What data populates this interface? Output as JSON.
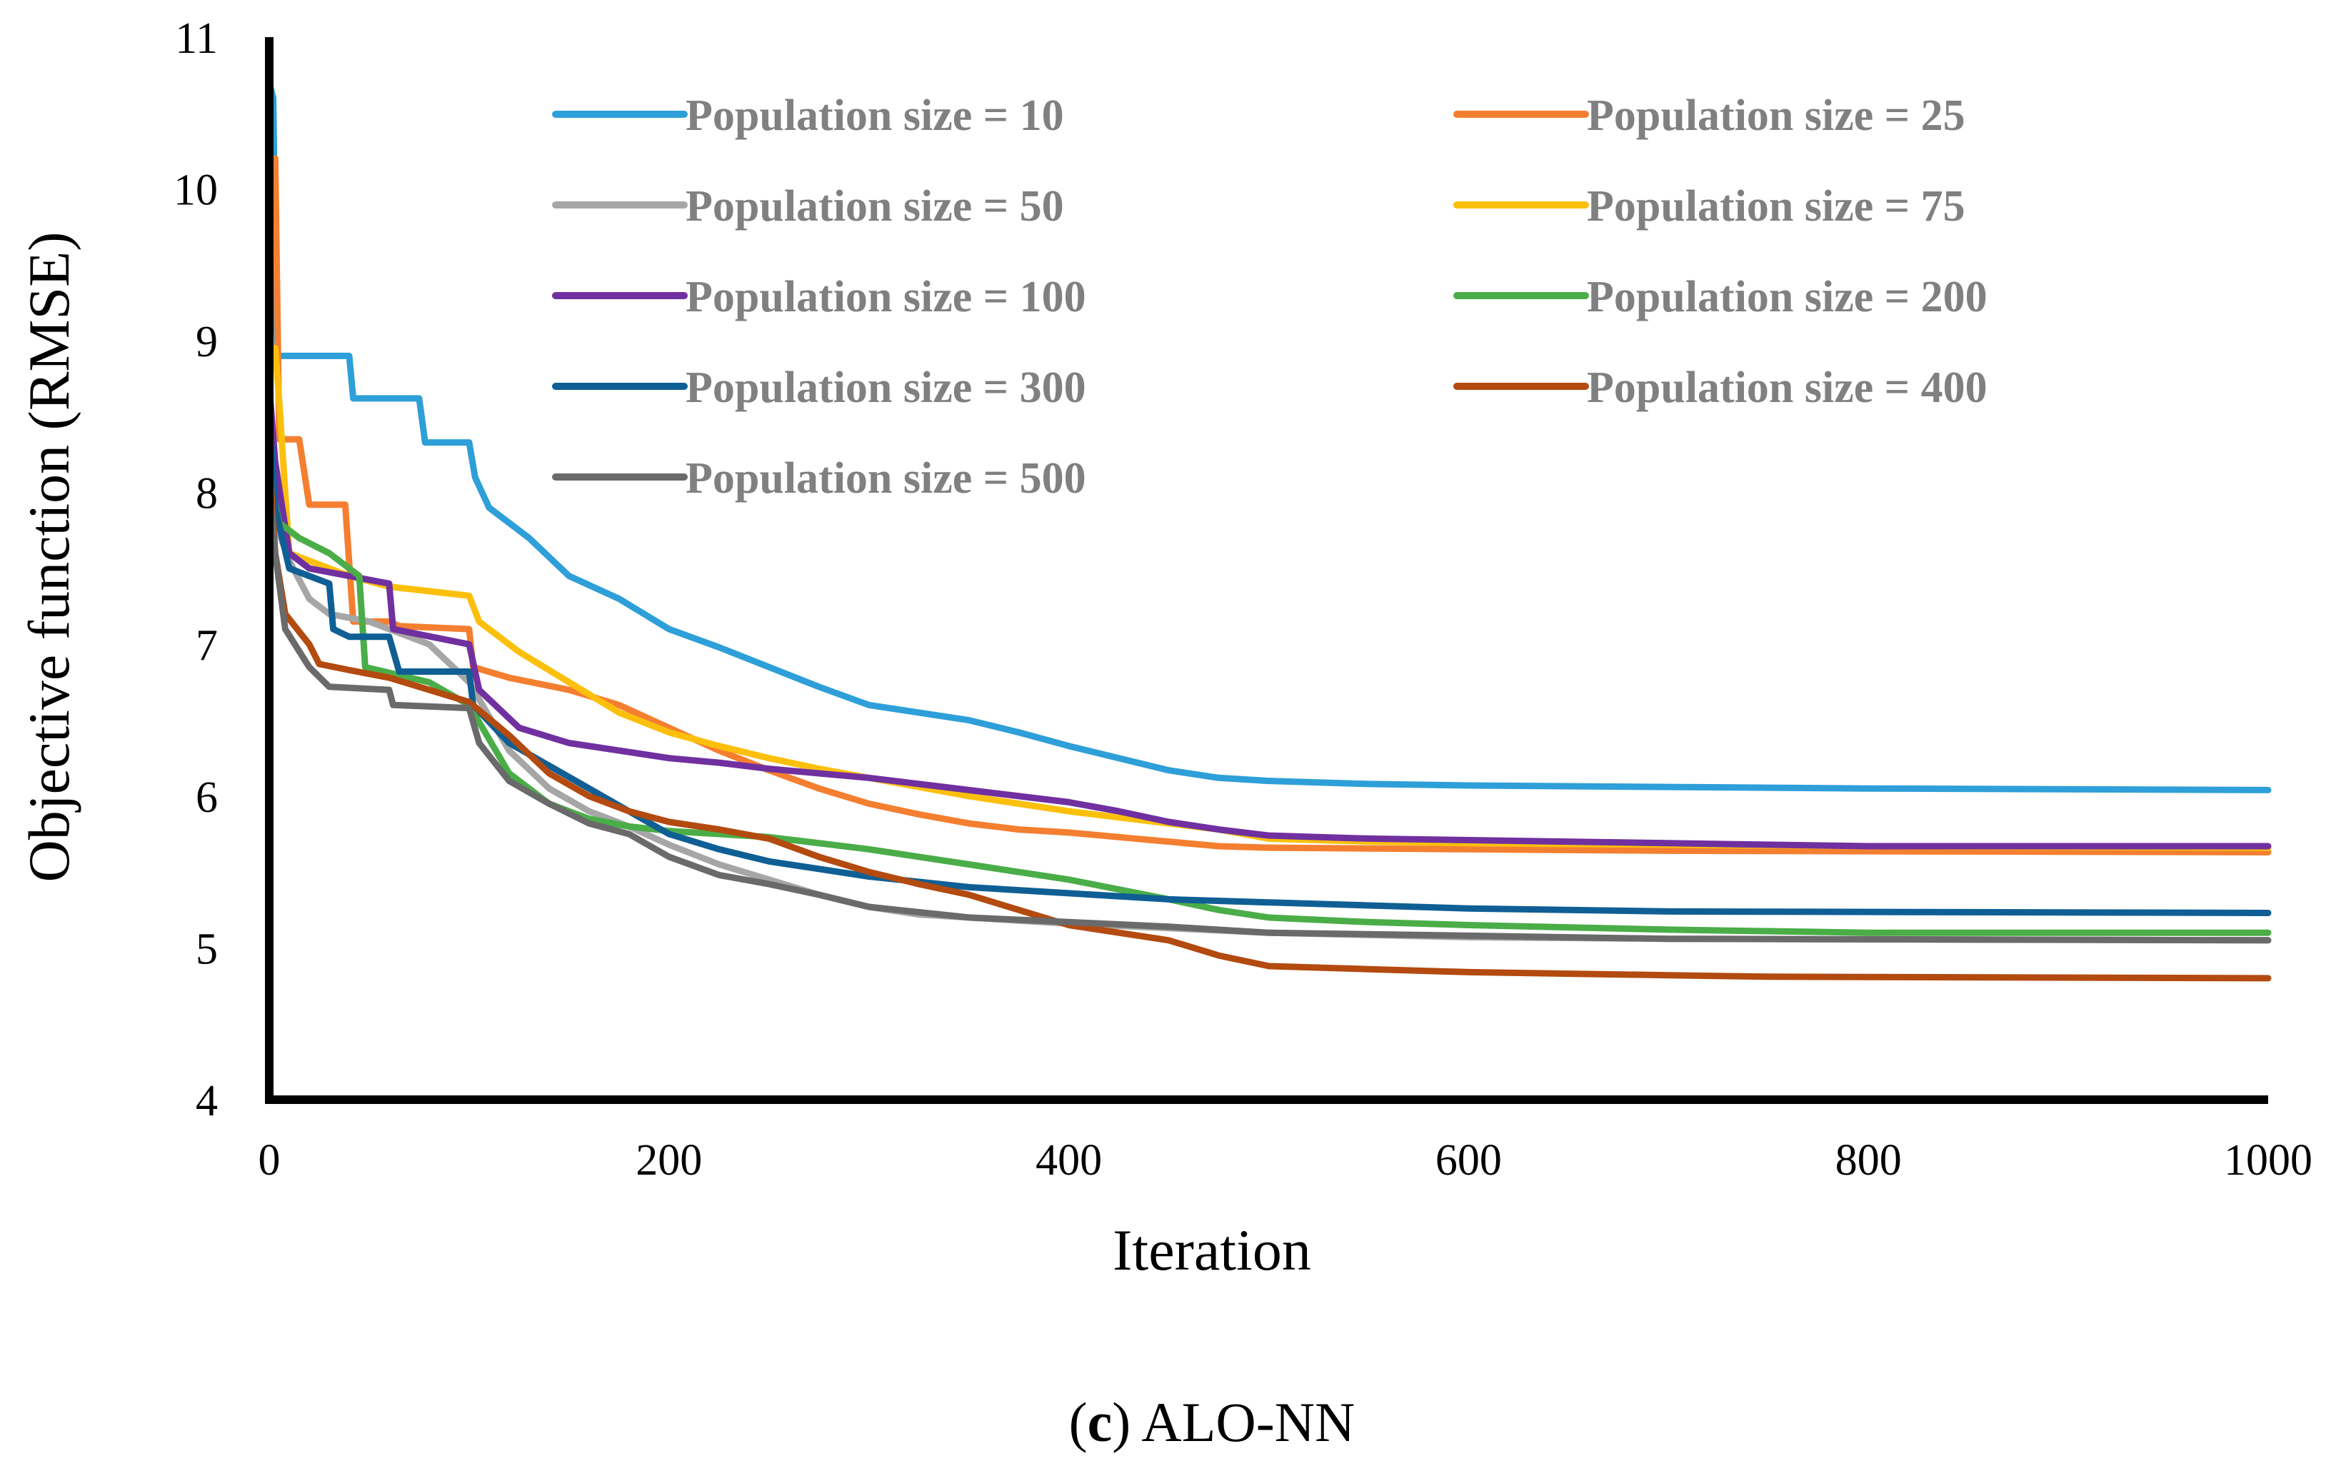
{
  "chart_data": {
    "type": "line",
    "title": "",
    "caption": {
      "letter": "c",
      "text": "ALO-NN"
    },
    "xlabel": "Iteration",
    "ylabel": "Objective function (RMSE)",
    "xlim": [
      0,
      1000
    ],
    "ylim": [
      4,
      11
    ],
    "xticks": [
      0,
      200,
      400,
      600,
      800,
      1000
    ],
    "yticks": [
      4,
      5,
      6,
      7,
      8,
      9,
      10,
      11
    ],
    "grid": false,
    "legend_position": "top",
    "series": [
      {
        "name": "Population size = 10",
        "color": "#2e9fd8",
        "points": [
          [
            0,
            10.7
          ],
          [
            2,
            10.6
          ],
          [
            3,
            9.6
          ],
          [
            4,
            8.9
          ],
          [
            40,
            8.9
          ],
          [
            42,
            8.62
          ],
          [
            75,
            8.62
          ],
          [
            78,
            8.33
          ],
          [
            100,
            8.33
          ],
          [
            103,
            8.1
          ],
          [
            110,
            7.9
          ],
          [
            130,
            7.7
          ],
          [
            150,
            7.45
          ],
          [
            175,
            7.3
          ],
          [
            200,
            7.1
          ],
          [
            225,
            6.98
          ],
          [
            250,
            6.85
          ],
          [
            275,
            6.72
          ],
          [
            300,
            6.6
          ],
          [
            325,
            6.55
          ],
          [
            350,
            6.5
          ],
          [
            375,
            6.42
          ],
          [
            400,
            6.33
          ],
          [
            425,
            6.25
          ],
          [
            450,
            6.17
          ],
          [
            475,
            6.12
          ],
          [
            500,
            6.1
          ],
          [
            550,
            6.08
          ],
          [
            600,
            6.07
          ],
          [
            700,
            6.06
          ],
          [
            800,
            6.05
          ],
          [
            1000,
            6.04
          ]
        ]
      },
      {
        "name": "Population size = 25",
        "color": "#f47f30",
        "points": [
          [
            0,
            10.2
          ],
          [
            3,
            10.2
          ],
          [
            5,
            8.35
          ],
          [
            15,
            8.35
          ],
          [
            20,
            7.92
          ],
          [
            38,
            7.92
          ],
          [
            42,
            7.15
          ],
          [
            60,
            7.15
          ],
          [
            65,
            7.12
          ],
          [
            100,
            7.1
          ],
          [
            102,
            6.85
          ],
          [
            120,
            6.78
          ],
          [
            150,
            6.7
          ],
          [
            175,
            6.6
          ],
          [
            200,
            6.45
          ],
          [
            225,
            6.3
          ],
          [
            250,
            6.17
          ],
          [
            275,
            6.05
          ],
          [
            300,
            5.95
          ],
          [
            325,
            5.88
          ],
          [
            350,
            5.82
          ],
          [
            375,
            5.78
          ],
          [
            400,
            5.76
          ],
          [
            425,
            5.73
          ],
          [
            450,
            5.7
          ],
          [
            475,
            5.67
          ],
          [
            500,
            5.66
          ],
          [
            600,
            5.65
          ],
          [
            700,
            5.64
          ],
          [
            1000,
            5.63
          ]
        ]
      },
      {
        "name": "Population size = 50",
        "color": "#a6a6a6",
        "points": [
          [
            0,
            8.4
          ],
          [
            3,
            7.8
          ],
          [
            10,
            7.55
          ],
          [
            20,
            7.3
          ],
          [
            30,
            7.2
          ],
          [
            50,
            7.15
          ],
          [
            80,
            7.0
          ],
          [
            100,
            6.75
          ],
          [
            120,
            6.3
          ],
          [
            140,
            6.05
          ],
          [
            160,
            5.9
          ],
          [
            180,
            5.8
          ],
          [
            200,
            5.68
          ],
          [
            225,
            5.55
          ],
          [
            250,
            5.45
          ],
          [
            275,
            5.35
          ],
          [
            300,
            5.27
          ],
          [
            325,
            5.22
          ],
          [
            350,
            5.2
          ],
          [
            375,
            5.18
          ],
          [
            400,
            5.16
          ],
          [
            450,
            5.13
          ],
          [
            500,
            5.1
          ],
          [
            600,
            5.07
          ],
          [
            700,
            5.06
          ],
          [
            1000,
            5.05
          ]
        ]
      },
      {
        "name": "Population size = 75",
        "color": "#fcc00c",
        "points": [
          [
            0,
            8.95
          ],
          [
            3,
            8.95
          ],
          [
            5,
            8.6
          ],
          [
            10,
            7.6
          ],
          [
            40,
            7.45
          ],
          [
            60,
            7.38
          ],
          [
            100,
            7.32
          ],
          [
            105,
            7.15
          ],
          [
            125,
            6.95
          ],
          [
            150,
            6.75
          ],
          [
            175,
            6.55
          ],
          [
            200,
            6.42
          ],
          [
            225,
            6.33
          ],
          [
            250,
            6.25
          ],
          [
            275,
            6.18
          ],
          [
            300,
            6.12
          ],
          [
            325,
            6.06
          ],
          [
            350,
            6.0
          ],
          [
            375,
            5.95
          ],
          [
            400,
            5.9
          ],
          [
            425,
            5.86
          ],
          [
            450,
            5.82
          ],
          [
            475,
            5.78
          ],
          [
            500,
            5.72
          ],
          [
            550,
            5.7
          ],
          [
            600,
            5.69
          ],
          [
            800,
            5.67
          ],
          [
            1000,
            5.66
          ]
        ]
      },
      {
        "name": "Population size = 100",
        "color": "#7030a0",
        "points": [
          [
            0,
            8.7
          ],
          [
            3,
            8.2
          ],
          [
            10,
            7.6
          ],
          [
            20,
            7.5
          ],
          [
            60,
            7.4
          ],
          [
            62,
            7.1
          ],
          [
            100,
            7.0
          ],
          [
            105,
            6.7
          ],
          [
            125,
            6.45
          ],
          [
            150,
            6.35
          ],
          [
            175,
            6.3
          ],
          [
            200,
            6.25
          ],
          [
            225,
            6.22
          ],
          [
            250,
            6.18
          ],
          [
            275,
            6.15
          ],
          [
            300,
            6.12
          ],
          [
            325,
            6.08
          ],
          [
            350,
            6.04
          ],
          [
            375,
            6.0
          ],
          [
            400,
            5.96
          ],
          [
            425,
            5.9
          ],
          [
            450,
            5.83
          ],
          [
            475,
            5.78
          ],
          [
            500,
            5.74
          ],
          [
            550,
            5.72
          ],
          [
            600,
            5.71
          ],
          [
            700,
            5.69
          ],
          [
            800,
            5.67
          ],
          [
            1000,
            5.67
          ]
        ]
      },
      {
        "name": "Population size = 200",
        "color": "#4aad48",
        "points": [
          [
            0,
            8.1
          ],
          [
            5,
            7.8
          ],
          [
            15,
            7.7
          ],
          [
            30,
            7.6
          ],
          [
            45,
            7.45
          ],
          [
            48,
            6.85
          ],
          [
            80,
            6.75
          ],
          [
            100,
            6.6
          ],
          [
            120,
            6.15
          ],
          [
            140,
            5.95
          ],
          [
            160,
            5.85
          ],
          [
            180,
            5.8
          ],
          [
            200,
            5.77
          ],
          [
            250,
            5.73
          ],
          [
            300,
            5.65
          ],
          [
            350,
            5.55
          ],
          [
            400,
            5.45
          ],
          [
            450,
            5.32
          ],
          [
            475,
            5.25
          ],
          [
            500,
            5.2
          ],
          [
            550,
            5.17
          ],
          [
            600,
            5.15
          ],
          [
            700,
            5.12
          ],
          [
            800,
            5.1
          ],
          [
            1000,
            5.1
          ]
        ]
      },
      {
        "name": "Population size = 300",
        "color": "#0f5f95",
        "points": [
          [
            0,
            8.5
          ],
          [
            3,
            7.9
          ],
          [
            10,
            7.5
          ],
          [
            30,
            7.4
          ],
          [
            32,
            7.1
          ],
          [
            40,
            7.05
          ],
          [
            60,
            7.05
          ],
          [
            65,
            6.82
          ],
          [
            100,
            6.82
          ],
          [
            102,
            6.6
          ],
          [
            120,
            6.35
          ],
          [
            140,
            6.2
          ],
          [
            160,
            6.05
          ],
          [
            180,
            5.9
          ],
          [
            200,
            5.75
          ],
          [
            225,
            5.65
          ],
          [
            250,
            5.57
          ],
          [
            300,
            5.47
          ],
          [
            350,
            5.4
          ],
          [
            400,
            5.36
          ],
          [
            450,
            5.32
          ],
          [
            500,
            5.3
          ],
          [
            600,
            5.26
          ],
          [
            700,
            5.24
          ],
          [
            1000,
            5.23
          ]
        ]
      },
      {
        "name": "Population size = 400",
        "color": "#b34a0f",
        "points": [
          [
            0,
            8.2
          ],
          [
            3,
            7.6
          ],
          [
            8,
            7.2
          ],
          [
            20,
            7.0
          ],
          [
            25,
            6.87
          ],
          [
            40,
            6.83
          ],
          [
            60,
            6.78
          ],
          [
            80,
            6.7
          ],
          [
            100,
            6.62
          ],
          [
            120,
            6.4
          ],
          [
            140,
            6.15
          ],
          [
            160,
            6.0
          ],
          [
            180,
            5.9
          ],
          [
            200,
            5.83
          ],
          [
            225,
            5.78
          ],
          [
            250,
            5.72
          ],
          [
            275,
            5.6
          ],
          [
            300,
            5.5
          ],
          [
            325,
            5.42
          ],
          [
            350,
            5.35
          ],
          [
            375,
            5.25
          ],
          [
            400,
            5.15
          ],
          [
            450,
            5.05
          ],
          [
            475,
            4.95
          ],
          [
            500,
            4.88
          ],
          [
            550,
            4.86
          ],
          [
            600,
            4.84
          ],
          [
            700,
            4.82
          ],
          [
            750,
            4.81
          ],
          [
            1000,
            4.8
          ]
        ]
      },
      {
        "name": "Population size = 500",
        "color": "#6a6a6a",
        "points": [
          [
            0,
            8.0
          ],
          [
            3,
            7.6
          ],
          [
            8,
            7.1
          ],
          [
            20,
            6.85
          ],
          [
            30,
            6.72
          ],
          [
            60,
            6.7
          ],
          [
            62,
            6.6
          ],
          [
            100,
            6.58
          ],
          [
            105,
            6.35
          ],
          [
            120,
            6.1
          ],
          [
            140,
            5.95
          ],
          [
            160,
            5.82
          ],
          [
            180,
            5.75
          ],
          [
            200,
            5.6
          ],
          [
            225,
            5.48
          ],
          [
            250,
            5.42
          ],
          [
            275,
            5.35
          ],
          [
            300,
            5.27
          ],
          [
            350,
            5.2
          ],
          [
            400,
            5.17
          ],
          [
            450,
            5.14
          ],
          [
            500,
            5.1
          ],
          [
            600,
            5.08
          ],
          [
            700,
            5.06
          ],
          [
            1000,
            5.05
          ]
        ]
      }
    ]
  }
}
